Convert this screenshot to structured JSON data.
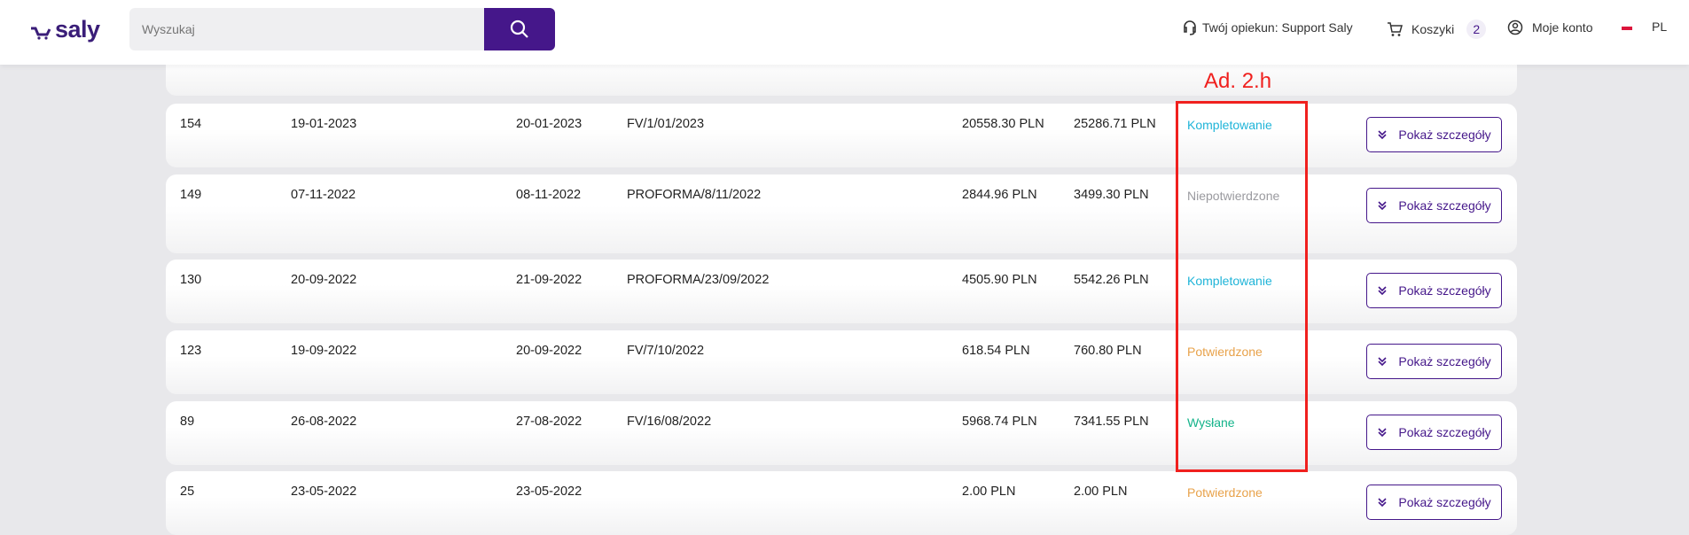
{
  "header": {
    "logo": "saly",
    "search_placeholder": "Wyszukaj",
    "support": "Twój opiekun: Support Saly",
    "cart_label": "Koszyki",
    "cart_count": "2",
    "account": "Moje konto",
    "language": "PL"
  },
  "annotation": "Ad. 2.h",
  "details_label": "Pokaż szczegóły",
  "colors": {
    "accent": "#45178a",
    "kompletowanie": "#1fb4d8",
    "niepotwierdzone": "#9a9a9f",
    "potwierdzone": "#e8a24a",
    "wyslane": "#13b38a",
    "annotation": "#f0201e"
  },
  "orders": [
    {
      "id": "154",
      "date": "19-01-2023",
      "date2": "20-01-2023",
      "doc": "FV/1/01/2023",
      "net": "20558.30 PLN",
      "gross": "25286.71 PLN",
      "status": "Kompletowanie",
      "status_color": "#1fb4d8"
    },
    {
      "id": "149",
      "date": "07-11-2022",
      "date2": "08-11-2022",
      "doc": "PROFORMA/8/11/2022",
      "net": "2844.96 PLN",
      "gross": "3499.30 PLN",
      "status": "Niepotwierdzone",
      "status_color": "#9a9a9f"
    },
    {
      "id": "130",
      "date": "20-09-2022",
      "date2": "21-09-2022",
      "doc": "PROFORMA/23/09/2022",
      "net": "4505.90 PLN",
      "gross": "5542.26 PLN",
      "status": "Kompletowanie",
      "status_color": "#1fb4d8"
    },
    {
      "id": "123",
      "date": "19-09-2022",
      "date2": "20-09-2022",
      "doc": "FV/7/10/2022",
      "net": "618.54 PLN",
      "gross": "760.80 PLN",
      "status": "Potwierdzone",
      "status_color": "#e8a24a"
    },
    {
      "id": "89",
      "date": "26-08-2022",
      "date2": "27-08-2022",
      "doc": "FV/16/08/2022",
      "net": "5968.74 PLN",
      "gross": "7341.55 PLN",
      "status": "Wysłane",
      "status_color": "#13b38a"
    },
    {
      "id": "25",
      "date": "23-05-2022",
      "date2": "23-05-2022",
      "doc": "",
      "net": "2.00 PLN",
      "gross": "2.00 PLN",
      "status": "Potwierdzone",
      "status_color": "#e8a24a"
    }
  ]
}
